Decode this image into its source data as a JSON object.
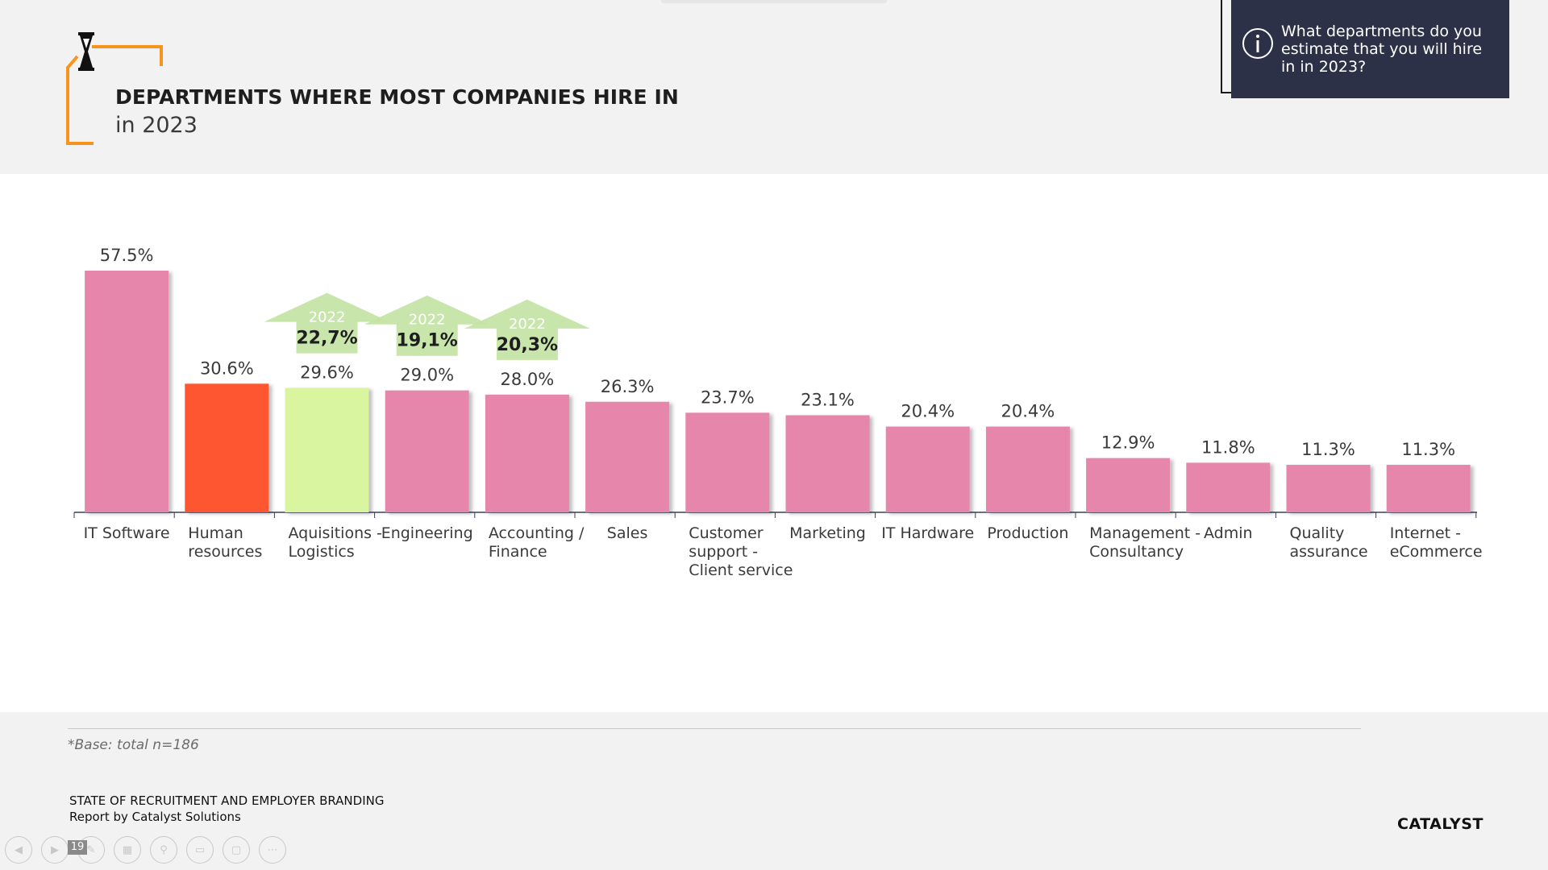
{
  "slide": {
    "title": "DEPARTMENTS WHERE MOST COMPANIES HIRE IN",
    "subtitle": "in 2023",
    "question": "What departments do you estimate that you will hire in in 2023?",
    "base_note": "*Base: total n=186",
    "report_title": "STATE OF RECRUITMENT AND EMPLOYER BRANDING",
    "report_subtitle": "Report by Catalyst Solutions",
    "brand": "CATALYST",
    "page_number": "19"
  },
  "colors": {
    "accent_orange": "#f7941d",
    "bar_pink": "#e586aa",
    "bar_red": "#ff5733",
    "bar_green": "#d9f5a0",
    "arrow_green": "#c3e3a4",
    "info_bg": "#2d3147"
  },
  "icons": [
    "hourglass-icon",
    "info-icon",
    "prev-icon",
    "next-icon",
    "pen-icon",
    "grid-icon",
    "zoom-icon",
    "subtitles-icon",
    "video-off-icon",
    "more-icon"
  ],
  "chart_data": {
    "type": "bar",
    "title": "DEPARTMENTS WHERE MOST COMPANIES HIRE IN",
    "subtitle": "in 2023",
    "categories": [
      [
        "IT Software"
      ],
      [
        "Human",
        "resources"
      ],
      [
        "Aquisitions -",
        "Logistics"
      ],
      [
        "Engineering"
      ],
      [
        "Accounting /",
        "Finance"
      ],
      [
        "Sales"
      ],
      [
        "Customer",
        "support -",
        "Client service"
      ],
      [
        "Marketing"
      ],
      [
        "IT Hardware"
      ],
      [
        "Production"
      ],
      [
        "Management -",
        "Consultancy"
      ],
      [
        "Admin"
      ],
      [
        "Quality",
        "assurance"
      ],
      [
        "Internet -",
        "eCommerce"
      ]
    ],
    "values": [
      57.5,
      30.6,
      29.6,
      29.0,
      28.0,
      26.3,
      23.7,
      23.1,
      20.4,
      20.4,
      12.9,
      11.8,
      11.3,
      11.3
    ],
    "value_labels": [
      "57.5%",
      "30.6%",
      "29.6%",
      "29.0%",
      "28.0%",
      "26.3%",
      "23.7%",
      "23.1%",
      "20.4%",
      "20.4%",
      "12.9%",
      "11.8%",
      "11.3%",
      "11.3%"
    ],
    "bar_colors": [
      "#e586aa",
      "#ff5733",
      "#d9f5a0",
      "#e586aa",
      "#e586aa",
      "#e586aa",
      "#e586aa",
      "#e586aa",
      "#e586aa",
      "#e586aa",
      "#e586aa",
      "#e586aa",
      "#e586aa",
      "#e586aa"
    ],
    "ylim": [
      0,
      57.5
    ],
    "grid": false,
    "annotations": [
      {
        "category_index": 2,
        "year": "2022",
        "value": "22,7%"
      },
      {
        "category_index": 3,
        "year": "2022",
        "value": "19,1%"
      },
      {
        "category_index": 4,
        "year": "2022",
        "value": "20,3%"
      }
    ]
  }
}
